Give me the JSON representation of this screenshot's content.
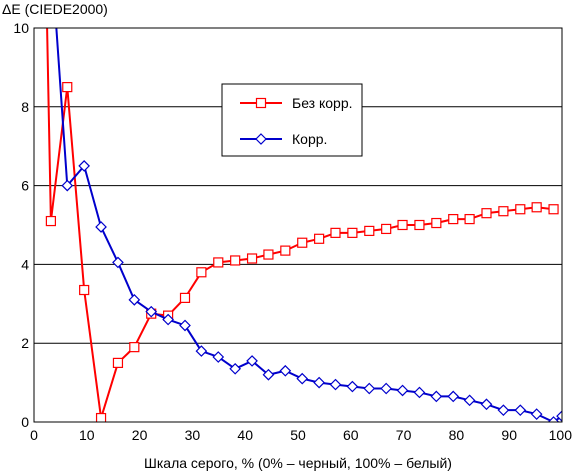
{
  "chart_data": {
    "type": "line",
    "title": "",
    "ylabel": "ΔE (CIEDE2000)",
    "xlabel": "Шкала серого, % (0% – черный, 100% – белый)",
    "xlim": [
      0,
      100
    ],
    "ylim": [
      0,
      10
    ],
    "x_ticks": [
      "0",
      "10",
      "20",
      "30",
      "40",
      "50",
      "60",
      "70",
      "80",
      "90",
      "100"
    ],
    "y_ticks": [
      "0",
      "2",
      "4",
      "6",
      "8",
      "10"
    ],
    "grid": "horizontal",
    "legend_position": "center",
    "series": [
      {
        "name": "Без корр.",
        "color": "#ff0000",
        "marker": "square",
        "points": [
          [
            1.6,
            16
          ],
          [
            3.2,
            5.1
          ],
          [
            6.3,
            8.5
          ],
          [
            9.5,
            3.35
          ],
          [
            12.7,
            0.1
          ],
          [
            15.9,
            1.5
          ],
          [
            19.0,
            1.9
          ],
          [
            22.2,
            2.75
          ],
          [
            25.4,
            2.7
          ],
          [
            28.6,
            3.15
          ],
          [
            31.7,
            3.8
          ],
          [
            34.9,
            4.05
          ],
          [
            38.1,
            4.1
          ],
          [
            41.3,
            4.15
          ],
          [
            44.4,
            4.25
          ],
          [
            47.6,
            4.35
          ],
          [
            50.8,
            4.55
          ],
          [
            54.0,
            4.65
          ],
          [
            57.1,
            4.8
          ],
          [
            60.3,
            4.8
          ],
          [
            63.5,
            4.85
          ],
          [
            66.7,
            4.9
          ],
          [
            69.8,
            5.0
          ],
          [
            73.0,
            5.0
          ],
          [
            76.2,
            5.05
          ],
          [
            79.4,
            5.15
          ],
          [
            82.5,
            5.15
          ],
          [
            85.7,
            5.3
          ],
          [
            88.9,
            5.35
          ],
          [
            92.1,
            5.4
          ],
          [
            95.2,
            5.45
          ],
          [
            98.4,
            5.4
          ]
        ]
      },
      {
        "name": "Корр.",
        "color": "#0000cc",
        "marker": "diamond",
        "points": [
          [
            3.2,
            12
          ],
          [
            6.3,
            6.0
          ],
          [
            9.5,
            6.5
          ],
          [
            12.7,
            4.95
          ],
          [
            15.9,
            4.05
          ],
          [
            19.0,
            3.1
          ],
          [
            22.2,
            2.8
          ],
          [
            25.4,
            2.6
          ],
          [
            28.6,
            2.45
          ],
          [
            31.7,
            1.8
          ],
          [
            34.9,
            1.65
          ],
          [
            38.1,
            1.35
          ],
          [
            41.3,
            1.55
          ],
          [
            44.4,
            1.2
          ],
          [
            47.6,
            1.3
          ],
          [
            50.8,
            1.1
          ],
          [
            54.0,
            1.0
          ],
          [
            57.1,
            0.95
          ],
          [
            60.3,
            0.9
          ],
          [
            63.5,
            0.85
          ],
          [
            66.7,
            0.85
          ],
          [
            69.8,
            0.8
          ],
          [
            73.0,
            0.75
          ],
          [
            76.2,
            0.65
          ],
          [
            79.4,
            0.65
          ],
          [
            82.5,
            0.55
          ],
          [
            85.7,
            0.45
          ],
          [
            88.9,
            0.3
          ],
          [
            92.1,
            0.3
          ],
          [
            95.2,
            0.2
          ],
          [
            98.4,
            0.0
          ],
          [
            100,
            0.15
          ]
        ]
      }
    ]
  }
}
